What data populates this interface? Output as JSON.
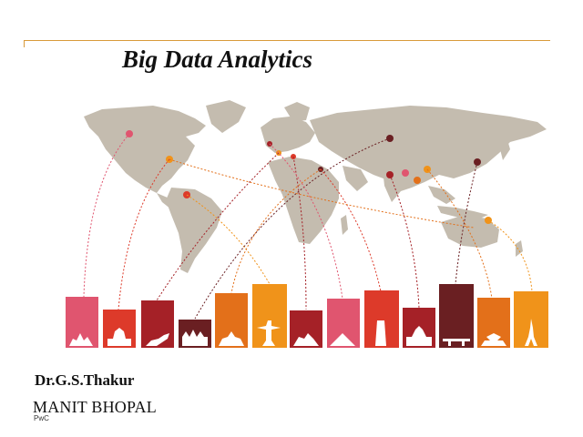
{
  "slide": {
    "title": "Big Data Analytics",
    "author": "Dr.G.S.Thakur",
    "organization": "MANIT BHOPAL",
    "footer": "PwC"
  },
  "colors": {
    "accent_rule": "#d99a3a",
    "map_land": "#c4bcaf",
    "bar_palette": [
      "#e0556f",
      "#dd3a2a",
      "#a52127",
      "#6a1f22",
      "#e3701a",
      "#f0931a"
    ]
  },
  "graphic": {
    "icon": "world-map-with-city-skyline-bars",
    "bars": [
      {
        "name": "bar-1",
        "color": "#e0556f",
        "icon": "palace-silhouette-icon"
      },
      {
        "name": "bar-2",
        "color": "#dd3a2a",
        "icon": "capitol-dome-icon"
      },
      {
        "name": "bar-3",
        "color": "#a52127",
        "icon": "kangaroo-icon"
      },
      {
        "name": "bar-4",
        "color": "#6a1f22",
        "icon": "kremlin-icon"
      },
      {
        "name": "bar-5",
        "color": "#e3701a",
        "icon": "cathedral-icon"
      },
      {
        "name": "bar-6",
        "color": "#f0931a",
        "icon": "christ-statue-icon"
      },
      {
        "name": "bar-7",
        "color": "#a52127",
        "icon": "opera-house-icon"
      },
      {
        "name": "bar-8",
        "color": "#e0556f",
        "icon": "pyramid-icon"
      },
      {
        "name": "bar-9",
        "color": "#dd3a2a",
        "icon": "leaning-tower-icon"
      },
      {
        "name": "bar-10",
        "color": "#a52127",
        "icon": "taj-mahal-icon"
      },
      {
        "name": "bar-11",
        "color": "#6a1f22",
        "icon": "torii-gate-icon"
      },
      {
        "name": "bar-12",
        "color": "#e3701a",
        "icon": "pagoda-icon"
      },
      {
        "name": "bar-13",
        "color": "#f0931a",
        "icon": "eiffel-tower-icon"
      }
    ]
  }
}
